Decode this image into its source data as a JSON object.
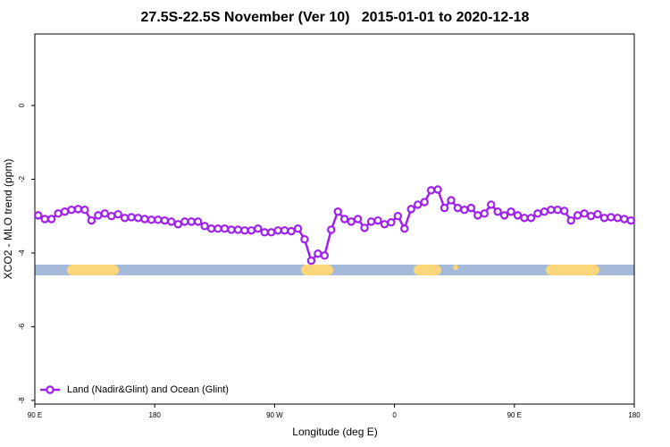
{
  "chart_data": {
    "type": "line",
    "title": "27.5S-22.5S November (Ver 10)   2015-01-01 to 2020-12-18",
    "x_label": "Longitude (deg E)",
    "y_label": "XCO2 - MLO trend (ppm)",
    "xlim": [
      90,
      540
    ],
    "xticks": [
      {
        "value": 90,
        "label": "90 E"
      },
      180,
      {
        "value": 270,
        "label": "90 W"
      },
      {
        "value": 360,
        "label": "0"
      },
      {
        "value": 450,
        "label": "90 E"
      },
      {
        "value": 540,
        "label": "180"
      }
    ],
    "ylim": [
      -8.1,
      1.94
    ],
    "yticks": [
      0,
      -2,
      -4,
      -6,
      -8
    ],
    "legend": "bottom-left",
    "x": [
      92.5,
      97.5,
      102.5,
      107.5,
      112.5,
      117.5,
      122.5,
      127.5,
      132.5,
      137.5,
      142.5,
      147.5,
      152.5,
      157.5,
      162.5,
      167.5,
      172.5,
      177.5,
      182.5,
      187.5,
      192.5,
      197.5,
      202.5,
      207.5,
      212.5,
      217.5,
      222.5,
      227.5,
      232.5,
      237.5,
      242.5,
      247.5,
      252.5,
      257.5,
      262.5,
      267.5,
      272.5,
      277.5,
      282.5,
      287.5,
      292.5,
      297.5,
      302.5,
      307.5,
      312.5,
      317.5,
      322.5,
      327.5,
      332.5,
      337.5,
      342.5,
      347.5,
      352.5,
      357.5,
      362.5,
      367.5,
      372.5,
      377.5,
      382.5,
      387.5,
      392.5,
      397.5,
      402.5,
      407.5,
      412.5,
      417.5,
      422.5,
      427.5,
      432.5,
      437.5,
      442.5,
      447.5,
      452.5,
      457.5,
      462.5,
      467.5,
      472.5,
      477.5,
      482.5,
      487.5,
      492.5,
      497.5,
      502.5,
      507.5,
      512.5,
      517.5,
      522.5,
      527.5,
      532.5,
      537.5
    ],
    "series": [
      {
        "name": "Land (Nadir&Glint) and Ocean (Glint)",
        "color": "#a020f0",
        "values": [
          -2.98,
          -3.08,
          -3.08,
          -2.93,
          -2.88,
          -2.83,
          -2.81,
          -2.83,
          -3.12,
          -2.98,
          -2.93,
          -3.0,
          -2.95,
          -3.05,
          -3.03,
          -3.05,
          -3.08,
          -3.1,
          -3.1,
          -3.12,
          -3.15,
          -3.22,
          -3.15,
          -3.15,
          -3.15,
          -3.27,
          -3.34,
          -3.34,
          -3.34,
          -3.37,
          -3.37,
          -3.39,
          -3.39,
          -3.34,
          -3.44,
          -3.44,
          -3.39,
          -3.39,
          -3.41,
          -3.34,
          -3.63,
          -4.21,
          -4.02,
          -4.07,
          -3.37,
          -2.88,
          -3.08,
          -3.15,
          -3.08,
          -3.32,
          -3.15,
          -3.12,
          -3.22,
          -3.17,
          -3.0,
          -3.34,
          -2.81,
          -2.69,
          -2.62,
          -2.3,
          -2.28,
          -2.78,
          -2.57,
          -2.78,
          -2.83,
          -2.78,
          -2.98,
          -2.93,
          -2.69,
          -2.88,
          -2.98,
          -2.88,
          -2.98,
          -3.05,
          -3.05,
          -2.93,
          -2.88,
          -2.83,
          -2.83,
          -2.86,
          -3.12,
          -2.98,
          -2.93,
          -3.0,
          -2.95,
          -3.05,
          -3.03,
          -3.05,
          -3.08,
          -3.12
        ]
      }
    ]
  }
}
